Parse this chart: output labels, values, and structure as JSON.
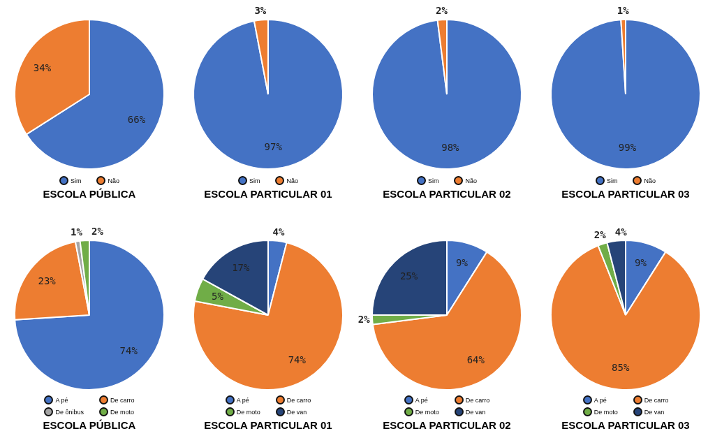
{
  "chart_data": [
    {
      "type": "pie",
      "title": "ESCOLA PÚBLICA",
      "categories": [
        "Sim",
        "Não"
      ],
      "values": [
        66,
        34
      ],
      "colors": [
        "#4472c4",
        "#ed7d31"
      ],
      "value_labels": [
        "66%",
        "34%"
      ],
      "legend": "bottom"
    },
    {
      "type": "pie",
      "title": "ESCOLA PARTICULAR 01",
      "categories": [
        "Sim",
        "Não"
      ],
      "values": [
        97,
        3
      ],
      "colors": [
        "#4472c4",
        "#ed7d31"
      ],
      "value_labels": [
        "97%",
        "3%"
      ],
      "legend": "bottom"
    },
    {
      "type": "pie",
      "title": "ESCOLA PARTICULAR 02",
      "categories": [
        "Sim",
        "Não"
      ],
      "values": [
        98,
        2
      ],
      "colors": [
        "#4472c4",
        "#ed7d31"
      ],
      "value_labels": [
        "98%",
        "2%"
      ],
      "legend": "bottom"
    },
    {
      "type": "pie",
      "title": "ESCOLA PARTICULAR 03",
      "categories": [
        "Sim",
        "Não"
      ],
      "values": [
        99,
        1
      ],
      "colors": [
        "#4472c4",
        "#ed7d31"
      ],
      "value_labels": [
        "99%",
        "1%"
      ],
      "legend": "bottom"
    },
    {
      "type": "pie",
      "title": "ESCOLA PÚBLICA",
      "categories": [
        "A pé",
        "De carro",
        "De ônibus",
        "De moto"
      ],
      "values": [
        74,
        23,
        1,
        2
      ],
      "colors": [
        "#4472c4",
        "#ed7d31",
        "#a5a5a5",
        "#70ad47"
      ],
      "value_labels": [
        "74%",
        "23%",
        "1%",
        "2%"
      ],
      "legend": "bottom"
    },
    {
      "type": "pie",
      "title": "ESCOLA PARTICULAR 01",
      "categories": [
        "A pé",
        "De carro",
        "De moto",
        "De van"
      ],
      "values": [
        4,
        74,
        5,
        17
      ],
      "colors": [
        "#4472c4",
        "#ed7d31",
        "#70ad47",
        "#264478"
      ],
      "value_labels": [
        "4%",
        "74%",
        "5%",
        "17%"
      ],
      "legend": "bottom"
    },
    {
      "type": "pie",
      "title": "ESCOLA PARTICULAR 02",
      "categories": [
        "A pé",
        "De carro",
        "De moto",
        "De van"
      ],
      "values": [
        9,
        64,
        2,
        25
      ],
      "colors": [
        "#4472c4",
        "#ed7d31",
        "#70ad47",
        "#264478"
      ],
      "value_labels": [
        "9%",
        "64%",
        "2%",
        "25%"
      ],
      "legend": "bottom"
    },
    {
      "type": "pie",
      "title": "ESCOLA PARTICULAR 03",
      "categories": [
        "A pé",
        "De carro",
        "De moto",
        "De van"
      ],
      "values": [
        9,
        85,
        2,
        4
      ],
      "colors": [
        "#4472c4",
        "#ed7d31",
        "#70ad47",
        "#264478"
      ],
      "value_labels": [
        "9%",
        "85%",
        "2%",
        "4%"
      ],
      "legend": "bottom"
    }
  ]
}
